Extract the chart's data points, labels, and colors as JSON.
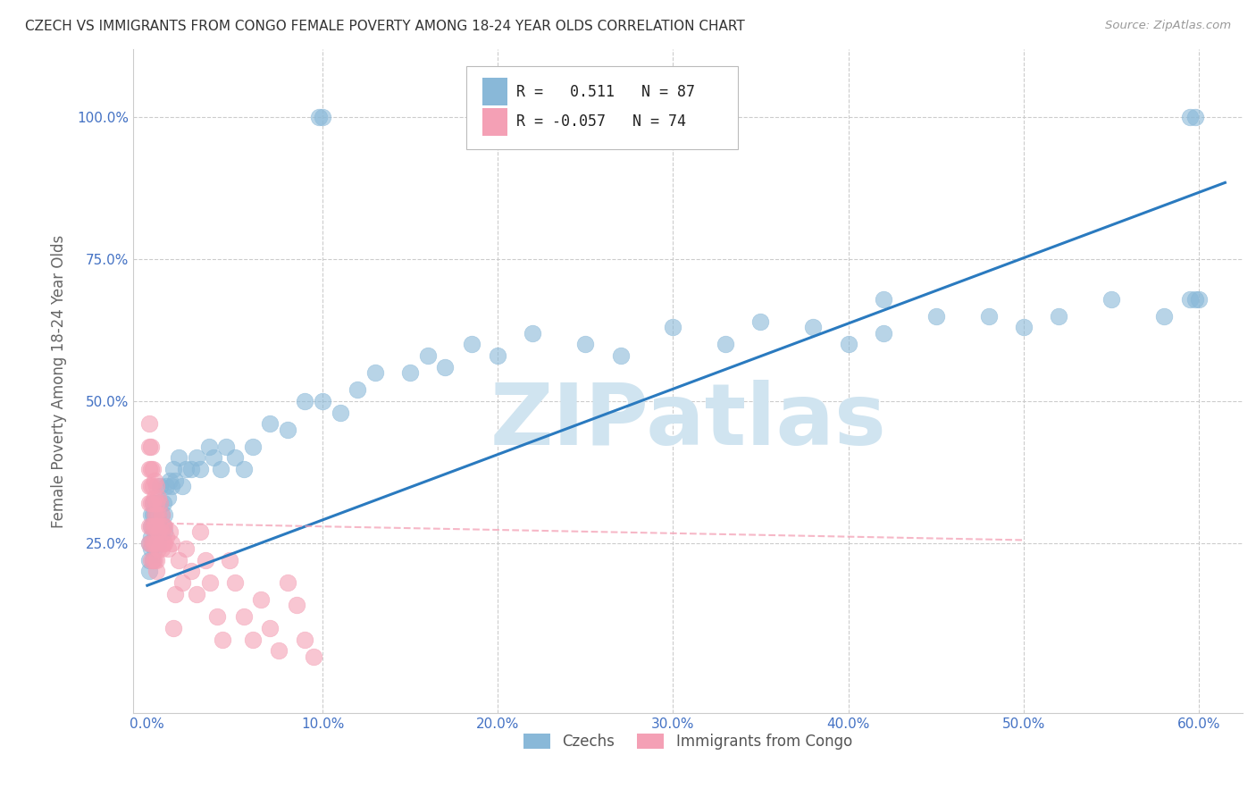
{
  "title": "CZECH VS IMMIGRANTS FROM CONGO FEMALE POVERTY AMONG 18-24 YEAR OLDS CORRELATION CHART",
  "source": "Source: ZipAtlas.com",
  "ylabel": "Female Poverty Among 18-24 Year Olds",
  "legend_czechs": "Czechs",
  "legend_congo": "Immigrants from Congo",
  "r_czech": 0.511,
  "n_czech": 87,
  "r_congo": -0.057,
  "n_congo": 74,
  "czech_color": "#89b8d8",
  "congo_color": "#f4a0b5",
  "czech_line_color": "#2a7abf",
  "congo_line_color": "#f4a0b5",
  "watermark": "ZIPatlas",
  "watermark_color": "#d0e4f0",
  "xlim": [
    -0.008,
    0.625
  ],
  "ylim": [
    -0.05,
    1.12
  ],
  "x_ticks": [
    0.0,
    0.1,
    0.2,
    0.3,
    0.4,
    0.5,
    0.6
  ],
  "x_labels": [
    "0.0%",
    "10.0%",
    "20.0%",
    "30.0%",
    "40.0%",
    "50.0%",
    "60.0%"
  ],
  "y_ticks": [
    0.0,
    0.25,
    0.5,
    0.75,
    1.0
  ],
  "y_labels": [
    "",
    "25.0%",
    "50.0%",
    "75.0%",
    "100.0%"
  ],
  "czech_trend_x": [
    0.0,
    0.615
  ],
  "czech_trend_y": [
    0.175,
    0.885
  ],
  "congo_trend_x": [
    0.0,
    0.5
  ],
  "congo_trend_y": [
    0.285,
    0.255
  ],
  "czech_x": [
    0.001,
    0.001,
    0.001,
    0.002,
    0.002,
    0.002,
    0.002,
    0.003,
    0.003,
    0.003,
    0.003,
    0.003,
    0.004,
    0.004,
    0.004,
    0.004,
    0.004,
    0.005,
    0.005,
    0.005,
    0.005,
    0.006,
    0.006,
    0.006,
    0.007,
    0.007,
    0.007,
    0.008,
    0.008,
    0.009,
    0.009,
    0.01,
    0.01,
    0.011,
    0.012,
    0.013,
    0.014,
    0.015,
    0.016,
    0.018,
    0.02,
    0.022,
    0.025,
    0.028,
    0.03,
    0.035,
    0.038,
    0.042,
    0.045,
    0.05,
    0.055,
    0.06,
    0.07,
    0.08,
    0.09,
    0.1,
    0.11,
    0.12,
    0.13,
    0.15,
    0.16,
    0.17,
    0.185,
    0.2,
    0.22,
    0.25,
    0.27,
    0.3,
    0.33,
    0.35,
    0.38,
    0.4,
    0.42,
    0.45,
    0.48,
    0.5,
    0.52,
    0.55,
    0.58,
    0.595,
    0.598,
    0.1,
    0.098,
    0.42,
    0.595,
    0.598,
    0.6
  ],
  "czech_y": [
    0.22,
    0.25,
    0.2,
    0.28,
    0.24,
    0.3,
    0.26,
    0.32,
    0.28,
    0.25,
    0.22,
    0.3,
    0.3,
    0.26,
    0.24,
    0.28,
    0.32,
    0.26,
    0.28,
    0.25,
    0.3,
    0.3,
    0.27,
    0.25,
    0.32,
    0.28,
    0.35,
    0.3,
    0.27,
    0.32,
    0.28,
    0.3,
    0.27,
    0.35,
    0.33,
    0.36,
    0.35,
    0.38,
    0.36,
    0.4,
    0.35,
    0.38,
    0.38,
    0.4,
    0.38,
    0.42,
    0.4,
    0.38,
    0.42,
    0.4,
    0.38,
    0.42,
    0.46,
    0.45,
    0.5,
    0.5,
    0.48,
    0.52,
    0.55,
    0.55,
    0.58,
    0.56,
    0.6,
    0.58,
    0.62,
    0.6,
    0.58,
    0.63,
    0.6,
    0.64,
    0.63,
    0.6,
    0.62,
    0.65,
    0.65,
    0.63,
    0.65,
    0.68,
    0.65,
    0.68,
    0.68,
    1.0,
    1.0,
    0.68,
    1.0,
    1.0,
    0.68
  ],
  "congo_x": [
    0.001,
    0.001,
    0.001,
    0.001,
    0.001,
    0.001,
    0.001,
    0.002,
    0.002,
    0.002,
    0.002,
    0.002,
    0.002,
    0.002,
    0.003,
    0.003,
    0.003,
    0.003,
    0.003,
    0.003,
    0.004,
    0.004,
    0.004,
    0.004,
    0.004,
    0.004,
    0.005,
    0.005,
    0.005,
    0.005,
    0.005,
    0.005,
    0.005,
    0.006,
    0.006,
    0.006,
    0.006,
    0.007,
    0.007,
    0.007,
    0.008,
    0.008,
    0.008,
    0.009,
    0.009,
    0.01,
    0.01,
    0.011,
    0.012,
    0.013,
    0.014,
    0.015,
    0.016,
    0.018,
    0.02,
    0.022,
    0.025,
    0.028,
    0.03,
    0.033,
    0.036,
    0.04,
    0.043,
    0.047,
    0.05,
    0.055,
    0.06,
    0.065,
    0.07,
    0.075,
    0.08,
    0.085,
    0.09,
    0.095
  ],
  "congo_y": [
    0.46,
    0.42,
    0.38,
    0.35,
    0.32,
    0.28,
    0.25,
    0.42,
    0.38,
    0.35,
    0.32,
    0.28,
    0.25,
    0.22,
    0.38,
    0.35,
    0.32,
    0.28,
    0.25,
    0.22,
    0.36,
    0.33,
    0.3,
    0.28,
    0.25,
    0.22,
    0.35,
    0.32,
    0.3,
    0.28,
    0.25,
    0.22,
    0.2,
    0.33,
    0.3,
    0.27,
    0.24,
    0.32,
    0.28,
    0.25,
    0.3,
    0.27,
    0.24,
    0.28,
    0.25,
    0.28,
    0.25,
    0.26,
    0.24,
    0.27,
    0.25,
    0.1,
    0.16,
    0.22,
    0.18,
    0.24,
    0.2,
    0.16,
    0.27,
    0.22,
    0.18,
    0.12,
    0.08,
    0.22,
    0.18,
    0.12,
    0.08,
    0.15,
    0.1,
    0.06,
    0.18,
    0.14,
    0.08,
    0.05
  ]
}
